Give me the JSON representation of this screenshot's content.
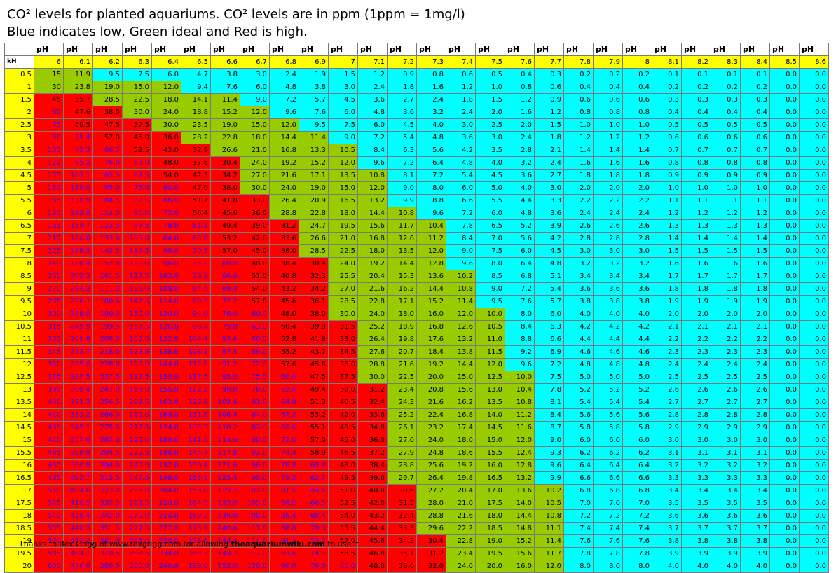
{
  "title_line1": "CO² levels for planted aquariums. CO² levels are in ppm (1ppm = 1mg/l)",
  "title_line2": "Blue indicates low, Green ideal and Red is high.",
  "ph_label": "pH",
  "kh_label": "kH",
  "ph_values": [
    "6",
    "6.1",
    "6.2",
    "6.3",
    "6.4",
    "6.5",
    "6.6",
    "6.7",
    "6.8",
    "6.9",
    "7",
    "7.1",
    "7.2",
    "7.3",
    "7.4",
    "7.5",
    "7.6",
    "7.7",
    "7.8",
    "7.9",
    "8",
    "8.1",
    "8.2",
    "8.3",
    "8.4",
    "8.5",
    "8.6"
  ],
  "kh_values": [
    "0.5",
    "1",
    "1.5",
    "2",
    "2.5",
    "3",
    "3.5",
    "4",
    "4.5",
    "5",
    "5.5",
    "6",
    "6.5",
    "7",
    "7.5",
    "8",
    "8.5",
    "9",
    "9.5",
    "10",
    "10.5",
    "11",
    "11.5",
    "12",
    "12.5",
    "13",
    "13.5",
    "14",
    "14.5",
    "15",
    "15.5",
    "16",
    "16.5",
    "17",
    "17.5",
    "18",
    "18.5",
    "19",
    "19.5",
    "20"
  ],
  "base_values": [
    "15",
    "11.9",
    "9.5",
    "7.5",
    "6.0",
    "4.7",
    "3.8",
    "3.0",
    "2.4",
    "1.9",
    "1.5",
    "1.2",
    "0.9",
    "0.8",
    "0.6",
    "0.5",
    "0.4",
    "0.3",
    "0.2",
    "0.2",
    "0.2",
    "0.1",
    "0.1",
    "0.1",
    "0.1",
    "0.0",
    "0.0"
  ],
  "colors": {
    "low": "#00ffff",
    "ideal": "#99cc00",
    "high": "#ff0000",
    "very_high_text": "#3300ff",
    "header": "#ffff00"
  },
  "footer": {
    "prefix": "Thanks to Rex Grigg of www.rexgrigg.com for allowing ",
    "site": "theaquariumwiki.com",
    "suffix": " to use it."
  }
}
